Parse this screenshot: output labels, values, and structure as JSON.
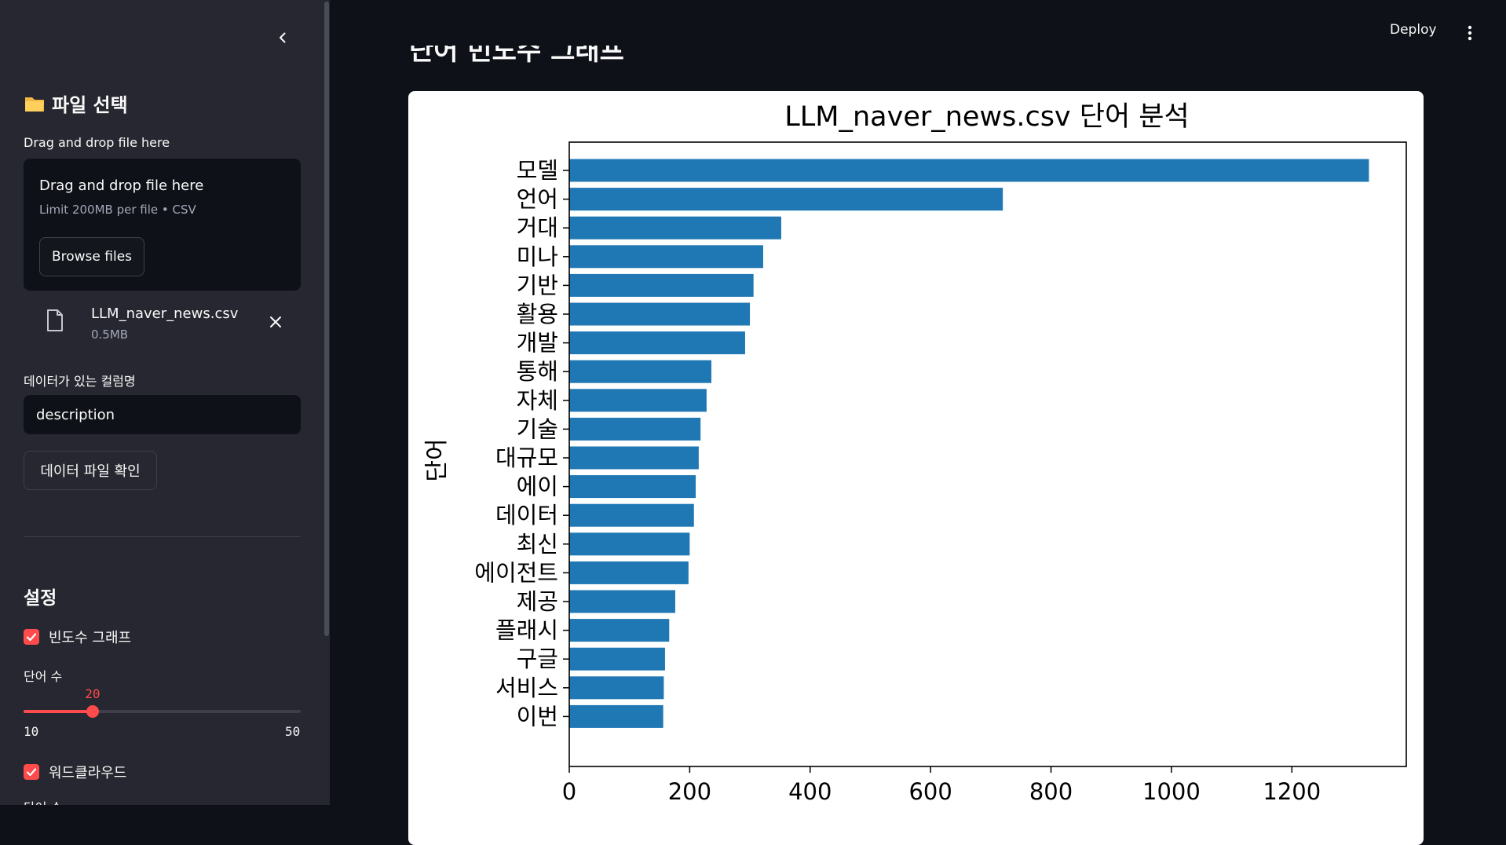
{
  "sidebar": {
    "title": "파일 선택",
    "title_icon": "folder-icon",
    "uploader_label": "Drag and drop file here",
    "dropzone_title": "Drag and drop file here",
    "dropzone_limit": "Limit 200MB per file • CSV",
    "browse_label": "Browse files",
    "file_name": "LLM_naver_news.csv",
    "file_size": "0.5MB",
    "column_label": "데이터가 있는 컬럼명",
    "column_value": "description",
    "check_button": "데이터 파일 확인",
    "settings_title": "설정",
    "freq_checkbox_label": "빈도수 그래프",
    "freq_checked": true,
    "word_count_label": "단어 수",
    "slider": {
      "value": 20,
      "min": 10,
      "max": 50
    },
    "wordcloud_checkbox_label": "워드클라우드",
    "wordcloud_checked": true,
    "cut_label": "단어 수"
  },
  "header": {
    "deploy_label": "Deploy"
  },
  "main": {
    "heading": "단어 빈도수 그래프"
  },
  "colors": {
    "accent": "#ff4b4b",
    "bar": "#1f77b4",
    "bg": "#0e1117",
    "sidebar": "#262730"
  },
  "chart_data": {
    "type": "bar",
    "orientation": "horizontal",
    "title": "LLM_naver_news.csv 단어 분석",
    "ylabel": "단어",
    "xlabel": "",
    "xlim": [
      0,
      1390
    ],
    "xticks": [
      0,
      200,
      400,
      600,
      800,
      1000,
      1200
    ],
    "categories": [
      "모델",
      "언어",
      "거대",
      "미나",
      "기반",
      "활용",
      "개발",
      "통해",
      "자체",
      "기술",
      "대규모",
      "에이",
      "데이터",
      "최신",
      "에이전트",
      "제공",
      "플래시",
      "구글",
      "서비스",
      "이번"
    ],
    "values": [
      1328,
      720,
      352,
      322,
      306,
      300,
      292,
      236,
      228,
      218,
      215,
      210,
      207,
      200,
      198,
      176,
      166,
      159,
      157,
      156
    ],
    "grid": false
  }
}
